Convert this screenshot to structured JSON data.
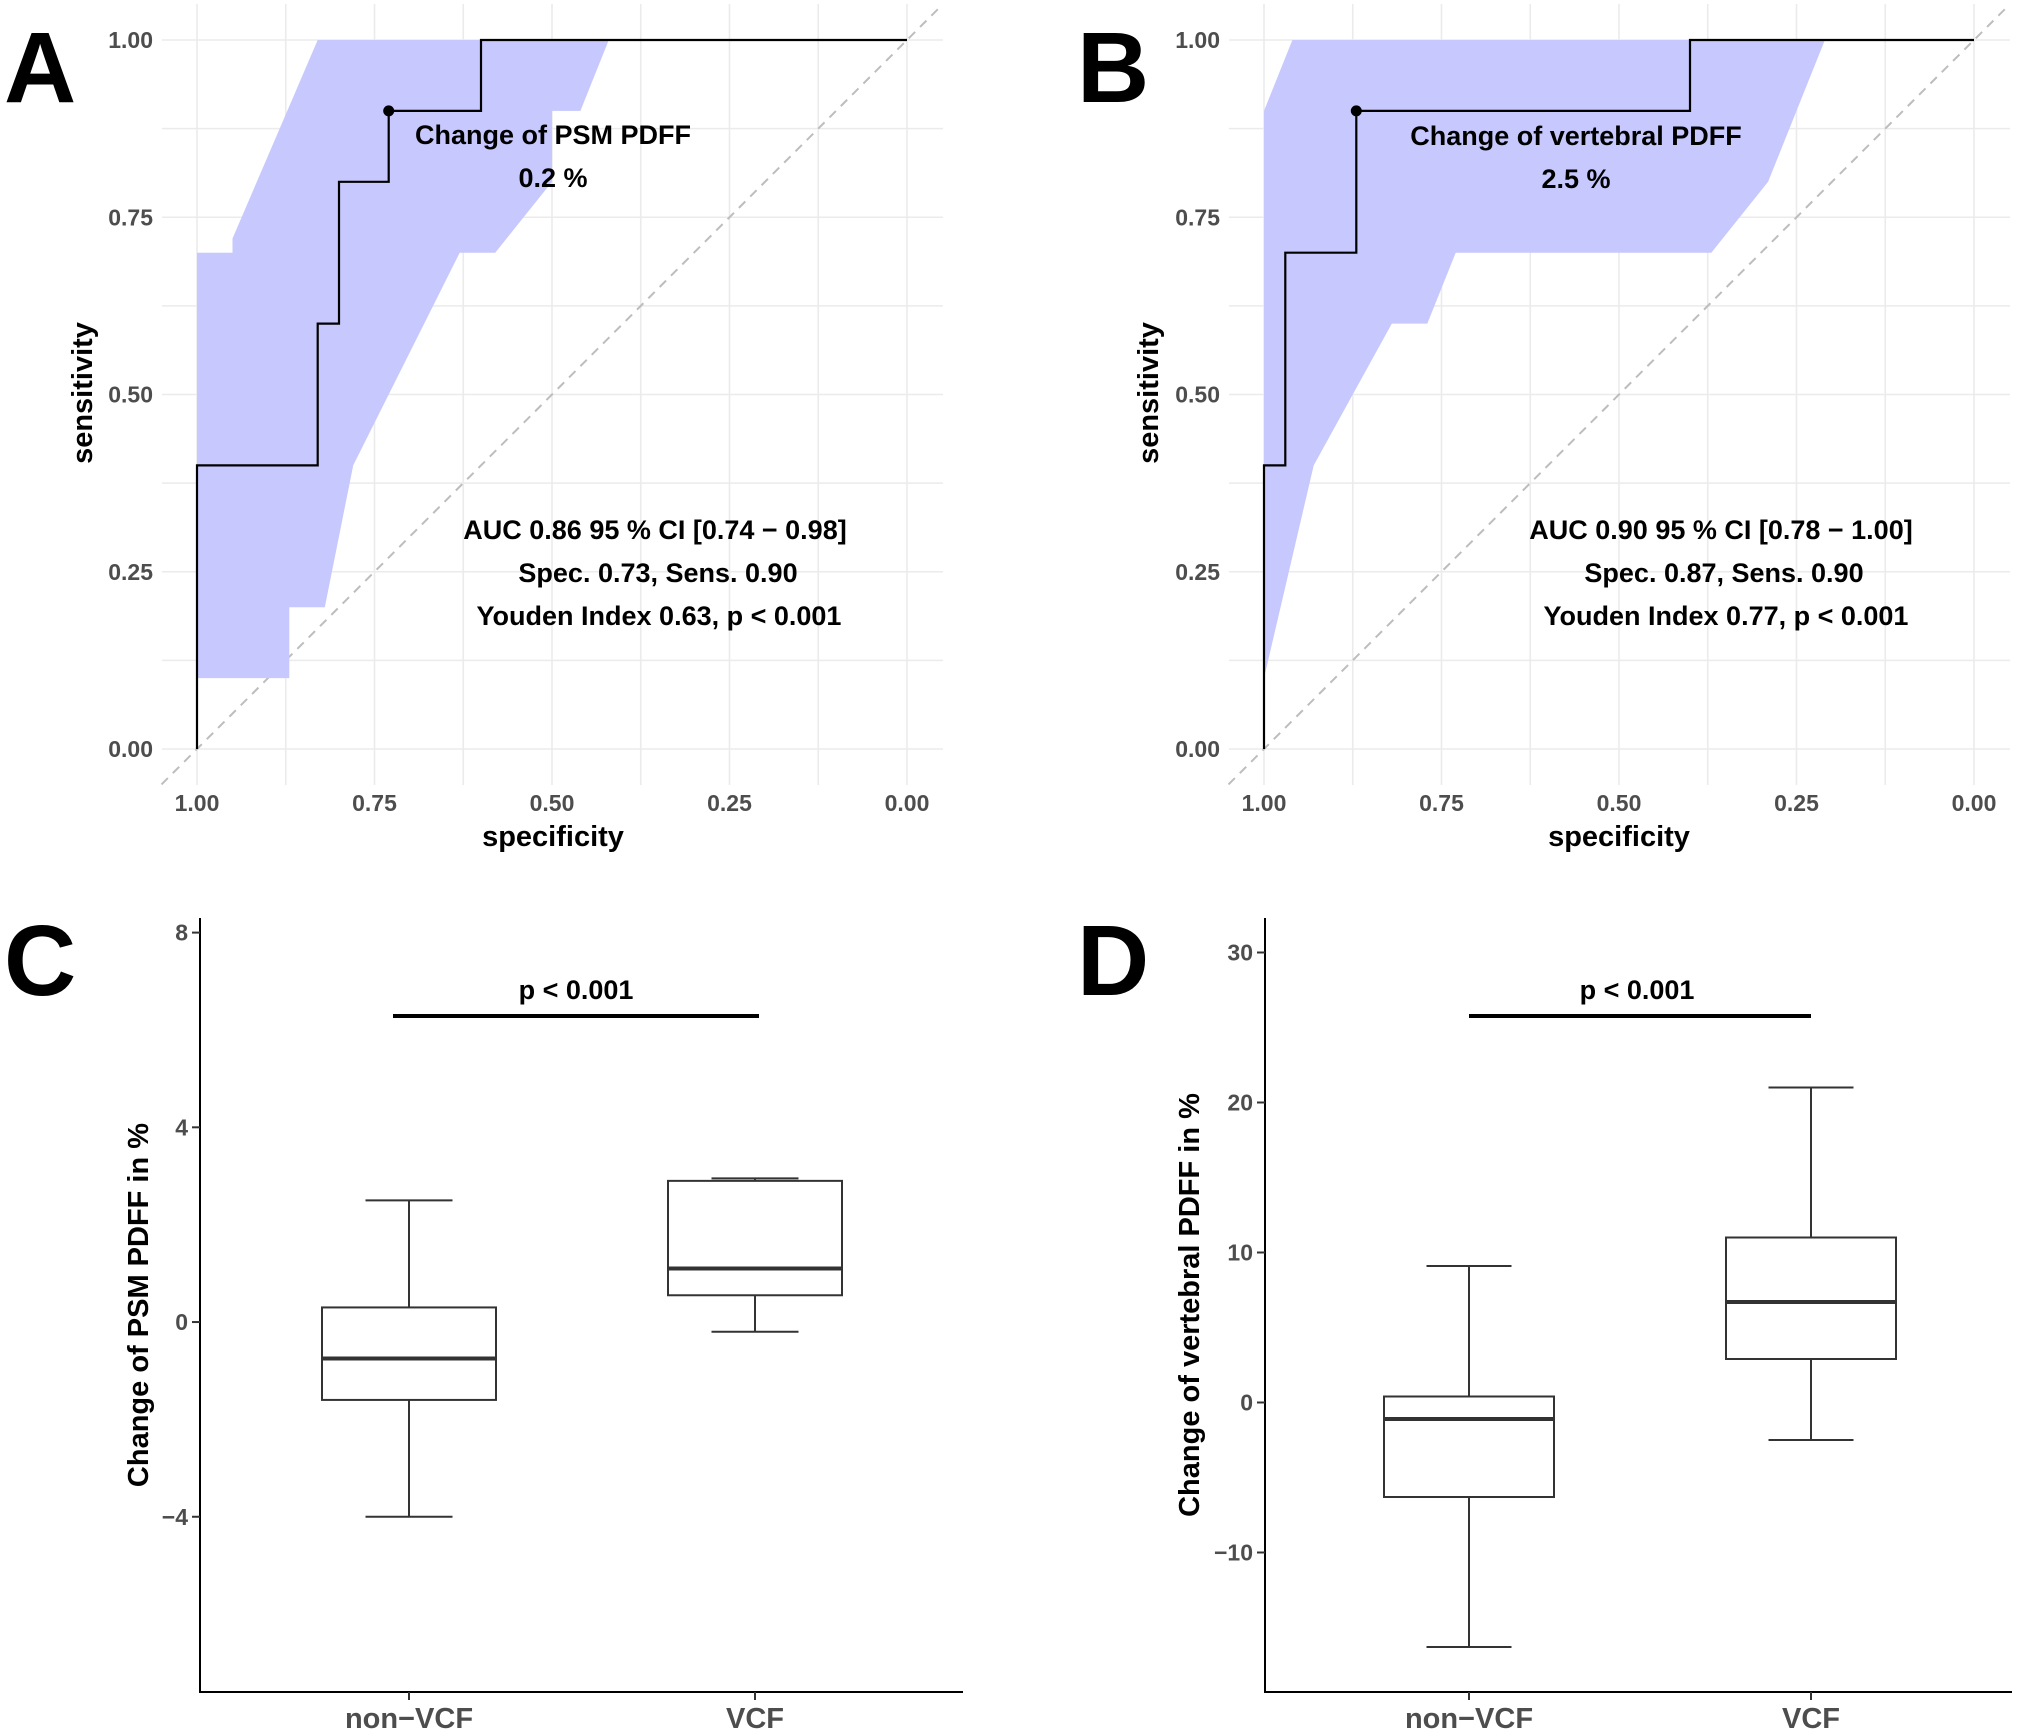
{
  "colors": {
    "ci_fill": "#c6c8fe",
    "line": "#000000",
    "grid": "#ebebeb",
    "tick_text": "#4d4d4d",
    "diagonal": "#bdbdbd"
  },
  "chart_data": [
    {
      "id": "A",
      "type": "line",
      "subtype": "roc",
      "panel_label": "A",
      "xlabel": "specificity",
      "ylabel": "sensitivity",
      "xlim": [
        1.0,
        0.0
      ],
      "ylim": [
        0.0,
        1.0
      ],
      "x_ticks": [
        "1.00",
        "0.75",
        "0.50",
        "0.25",
        "0.00"
      ],
      "y_ticks": [
        "0.00",
        "0.25",
        "0.50",
        "0.75",
        "1.00"
      ],
      "roc": {
        "specificity": [
          1.0,
          1.0,
          0.83,
          0.83,
          0.8,
          0.8,
          0.73,
          0.73,
          0.6,
          0.6,
          0.0
        ],
        "sensitivity": [
          0.0,
          0.4,
          0.4,
          0.6,
          0.6,
          0.8,
          0.8,
          0.9,
          0.9,
          1.0,
          1.0
        ]
      },
      "ci_band": {
        "upper": {
          "specificity": [
            1.0,
            1.0,
            0.95,
            0.95,
            0.83,
            0.73,
            0.5,
            0.0
          ],
          "sensitivity": [
            0.1,
            0.7,
            0.7,
            0.72,
            1.0,
            1.0,
            1.0,
            1.0
          ]
        },
        "lower": {
          "specificity": [
            0.0,
            0.42,
            0.46,
            0.5,
            0.5,
            0.58,
            0.63,
            0.68,
            0.78,
            0.82,
            0.87,
            0.87,
            1.0
          ],
          "sensitivity": [
            1.0,
            1.0,
            0.9,
            0.9,
            0.8,
            0.7,
            0.7,
            0.6,
            0.4,
            0.2,
            0.2,
            0.1,
            0.1
          ]
        }
      },
      "cutoff_point": {
        "specificity": 0.73,
        "sensitivity": 0.9
      },
      "cutoff_label": [
        "Change of PSM PDFF",
        "0.2 %"
      ],
      "stats_text": [
        "AUC 0.86 95 % CI [0.74 − 0.98]",
        "Spec. 0.73, Sens. 0.90",
        "Youden Index 0.63, p < 0.001"
      ]
    },
    {
      "id": "B",
      "type": "line",
      "subtype": "roc",
      "panel_label": "B",
      "xlabel": "specificity",
      "ylabel": "sensitivity",
      "xlim": [
        1.0,
        0.0
      ],
      "ylim": [
        0.0,
        1.0
      ],
      "x_ticks": [
        "1.00",
        "0.75",
        "0.50",
        "0.25",
        "0.00"
      ],
      "y_ticks": [
        "0.00",
        "0.25",
        "0.50",
        "0.75",
        "1.00"
      ],
      "roc": {
        "specificity": [
          1.0,
          1.0,
          0.97,
          0.97,
          0.87,
          0.87,
          0.4,
          0.4,
          0.0
        ],
        "sensitivity": [
          0.0,
          0.4,
          0.4,
          0.7,
          0.7,
          0.9,
          0.9,
          1.0,
          1.0
        ]
      },
      "ci_band": {
        "upper": {
          "specificity": [
            1.0,
            1.0,
            0.96,
            0.0
          ],
          "sensitivity": [
            0.1,
            0.9,
            1.0,
            1.0
          ]
        },
        "lower": {
          "specificity": [
            0.0,
            0.21,
            0.29,
            0.29,
            0.37,
            0.73,
            0.77,
            0.82,
            0.93,
            1.0
          ],
          "sensitivity": [
            1.0,
            1.0,
            0.8,
            0.8,
            0.7,
            0.7,
            0.6,
            0.6,
            0.4,
            0.1
          ]
        }
      },
      "cutoff_point": {
        "specificity": 0.87,
        "sensitivity": 0.9
      },
      "cutoff_label": [
        "Change of vertebral PDFF",
        "2.5 %"
      ],
      "stats_text": [
        "AUC 0.90 95 % CI [0.78 − 1.00]",
        "Spec. 0.87, Sens. 0.90",
        "Youden Index 0.77, p < 0.001"
      ]
    },
    {
      "id": "C",
      "type": "box",
      "panel_label": "C",
      "ylabel": "Change of PSM PDFF in %",
      "ylim": [
        -7.6,
        8.3
      ],
      "y_ticks": [
        -4,
        0,
        4,
        8
      ],
      "categories": [
        "non−VCF",
        "VCF"
      ],
      "boxes": [
        {
          "whisker_low": -4.0,
          "q1": -1.6,
          "median": -0.75,
          "q3": 0.3,
          "whisker_high": 2.5
        },
        {
          "whisker_low": -0.2,
          "q1": 0.55,
          "median": 1.1,
          "q3": 2.9,
          "whisker_high": 2.95
        }
      ],
      "significance": "p < 0.001"
    },
    {
      "id": "D",
      "type": "box",
      "panel_label": "D",
      "ylabel": "Change of vertebral PDFF in %",
      "ylim": [
        -19.3,
        32.3
      ],
      "y_ticks": [
        -10,
        0,
        10,
        20,
        30
      ],
      "categories": [
        "non−VCF",
        "VCF"
      ],
      "boxes": [
        {
          "whisker_low": -16.3,
          "q1": -6.3,
          "median": -1.1,
          "q3": 0.4,
          "whisker_high": 9.1
        },
        {
          "whisker_low": -2.5,
          "q1": 2.9,
          "median": 6.7,
          "q3": 11.0,
          "whisker_high": 21.0
        }
      ],
      "significance": "p < 0.001"
    }
  ]
}
